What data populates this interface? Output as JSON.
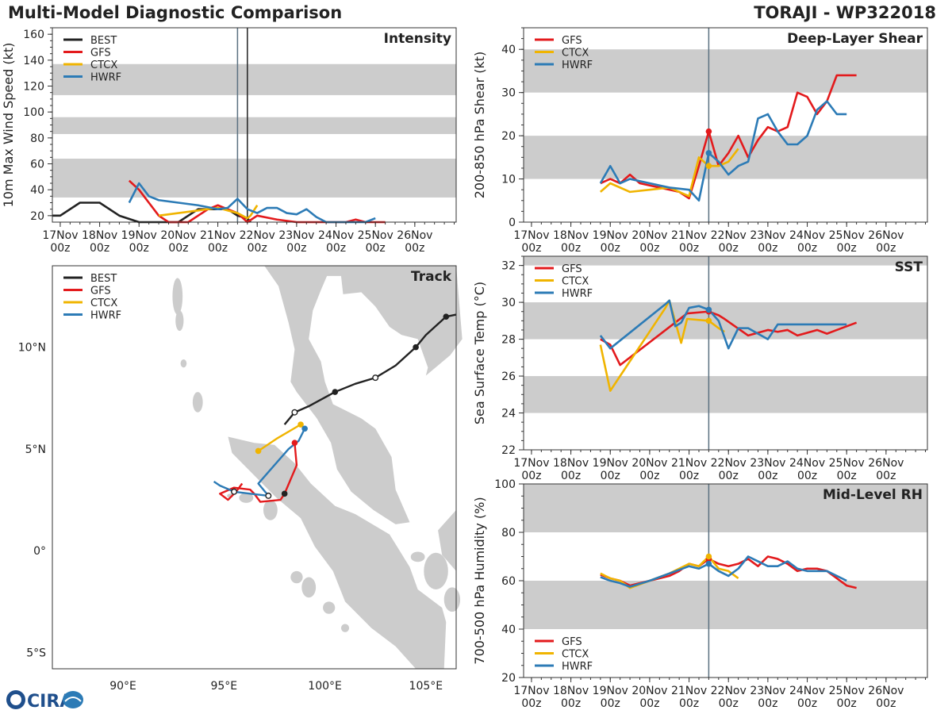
{
  "header": {
    "title": "Multi-Model Diagnostic Comparison",
    "storm": "TORAJI - WP322018"
  },
  "colors": {
    "BEST": "#222222",
    "GFS": "#e31a1c",
    "CTCX": "#f0b400",
    "HWRF": "#2c7bb6",
    "band": "#cccccc",
    "land": "#cccccc",
    "vline": "#5a7080"
  },
  "time_axis": {
    "ticks": [
      {
        "day": "17Nov",
        "hour": "00z"
      },
      {
        "day": "18Nov",
        "hour": "00z"
      },
      {
        "day": "19Nov",
        "hour": "00z"
      },
      {
        "day": "20Nov",
        "hour": "00z"
      },
      {
        "day": "21Nov",
        "hour": "00z"
      },
      {
        "day": "22Nov",
        "hour": "00z"
      },
      {
        "day": "23Nov",
        "hour": "00z"
      },
      {
        "day": "24Nov",
        "hour": "00z"
      },
      {
        "day": "25Nov",
        "hour": "00z"
      },
      {
        "day": "26Nov",
        "hour": "00z"
      }
    ],
    "xlim_days": [
      -0.2,
      10.05
    ],
    "init_day": 4.5
  },
  "logo": {
    "text": "CIRA"
  },
  "chart_data": [
    {
      "id": "intensity",
      "type": "line",
      "title": "Intensity",
      "ylabel": "10m Max Wind Speed (kt)",
      "ylim": [
        15,
        165
      ],
      "yticks": [
        20,
        40,
        60,
        80,
        100,
        120,
        140,
        160
      ],
      "bands": [
        [
          34,
          64
        ],
        [
          83,
          96
        ],
        [
          113,
          137
        ]
      ],
      "vlines": [
        4.5,
        4.75
      ],
      "legend": [
        "BEST",
        "GFS",
        "CTCX",
        "HWRF"
      ],
      "series": [
        {
          "name": "BEST",
          "x": [
            -0.2,
            0,
            0.5,
            1,
            1.5,
            2,
            2.5,
            3,
            3.25,
            3.5,
            4,
            4.25,
            4.5,
            4.75,
            4.83
          ],
          "y": [
            20,
            20,
            30,
            30,
            20,
            15,
            15,
            15,
            20,
            25,
            25,
            25,
            20,
            18,
            15
          ]
        },
        {
          "name": "GFS",
          "x": [
            1.75,
            2,
            2.25,
            2.5,
            2.75,
            3,
            3.25,
            3.5,
            3.75,
            4,
            4.25,
            4.5,
            4.75,
            5,
            5.5,
            6,
            6.5,
            7,
            7.25,
            7.5,
            7.75,
            8.25
          ],
          "y": [
            47,
            40,
            30,
            20,
            15,
            15,
            15,
            20,
            25,
            28,
            25,
            22,
            15,
            20,
            17,
            15,
            15,
            15,
            15,
            17,
            15,
            15
          ]
        },
        {
          "name": "CTCX",
          "x": [
            2.5,
            3,
            3.5,
            4,
            4.5,
            4.75,
            4.83,
            5
          ],
          "y": [
            20,
            22,
            24,
            26,
            22,
            18,
            20,
            28
          ]
        },
        {
          "name": "HWRF",
          "x": [
            1.75,
            2,
            2.25,
            2.5,
            3,
            3.5,
            4,
            4.25,
            4.5,
            4.75,
            5,
            5.25,
            5.5,
            5.75,
            6,
            6.25,
            6.5,
            6.75,
            7,
            7.25,
            7.5,
            7.75,
            8
          ],
          "y": [
            30,
            45,
            35,
            32,
            30,
            28,
            25,
            26,
            33,
            25,
            22,
            26,
            26,
            22,
            21,
            25,
            19,
            15,
            15,
            15,
            15,
            15,
            18
          ]
        }
      ]
    },
    {
      "id": "shear",
      "type": "line",
      "title": "Deep-Layer Shear",
      "ylabel": "200-850 hPa Shear (kt)",
      "ylim": [
        0,
        45
      ],
      "yticks": [
        0,
        10,
        20,
        30,
        40
      ],
      "bands": [
        [
          10,
          20
        ],
        [
          30,
          40
        ]
      ],
      "vlines": [
        4.5
      ],
      "legend": [
        "GFS",
        "CTCX",
        "HWRF"
      ],
      "series": [
        {
          "name": "GFS",
          "x": [
            1.75,
            2,
            2.25,
            2.5,
            2.75,
            3,
            3.25,
            3.5,
            3.75,
            4,
            4.25,
            4.5,
            4.75,
            5,
            5.25,
            5.5,
            5.75,
            6,
            6.25,
            6.5,
            6.75,
            7,
            7.25,
            7.5,
            7.75,
            8,
            8.25
          ],
          "y": [
            9,
            10,
            9,
            11,
            9,
            8.5,
            8,
            7.5,
            7,
            5.5,
            13,
            21,
            13,
            16,
            20,
            15,
            19,
            22,
            21,
            22,
            30,
            29,
            25,
            28,
            34,
            34,
            34
          ]
        },
        {
          "name": "CTCX",
          "x": [
            1.75,
            2,
            2.5,
            3,
            3.5,
            4,
            4.25,
            4.5,
            4.75,
            5,
            5.25
          ],
          "y": [
            7,
            9,
            7,
            7.5,
            8,
            6,
            15,
            13,
            13,
            14,
            17
          ]
        },
        {
          "name": "HWRF",
          "x": [
            1.75,
            2,
            2.25,
            2.5,
            3,
            3.5,
            4,
            4.25,
            4.5,
            4.75,
            5,
            5.25,
            5.5,
            5.75,
            6,
            6.25,
            6.5,
            6.75,
            7,
            7.25,
            7.5,
            7.75,
            8
          ],
          "y": [
            9,
            13,
            9,
            10,
            9,
            8,
            7.5,
            5,
            16,
            14,
            11,
            13,
            14,
            24,
            25,
            21,
            18,
            18,
            20,
            26,
            28,
            25,
            25
          ]
        }
      ]
    },
    {
      "id": "track",
      "type": "line",
      "title": "Track",
      "xlim": [
        86.5,
        106.5
      ],
      "ylim": [
        -5.8,
        14
      ],
      "xtick_labels": [
        {
          "v": 90,
          "t": "90°E"
        },
        {
          "v": 95,
          "t": "95°E"
        },
        {
          "v": 100,
          "t": "100°E"
        },
        {
          "v": 105,
          "t": "105°E"
        }
      ],
      "ytick_labels": [
        {
          "v": 10,
          "t": "10°N"
        },
        {
          "v": 5,
          "t": "5°N"
        },
        {
          "v": 0,
          "t": "0°"
        },
        {
          "v": -5,
          "t": "5°S"
        }
      ],
      "legend": [
        "BEST",
        "GFS",
        "CTCX",
        "HWRF"
      ],
      "series": [
        {
          "name": "BEST",
          "lon": [
            106.5,
            106,
            105,
            104.5,
            103.5,
            102.5,
            101.5,
            100.5,
            99.2,
            98.5,
            98.0
          ],
          "lat": [
            11.6,
            11.5,
            10.6,
            10.0,
            9.1,
            8.5,
            8.2,
            7.8,
            7.1,
            6.8,
            6.2
          ],
          "filled": [
            7,
            3,
            1
          ],
          "open": [
            9,
            5
          ]
        },
        {
          "name": "GFS",
          "lon": [
            98.5,
            98.6,
            98.3,
            98.0,
            97.8,
            96.8,
            96.5,
            96.3,
            95.5,
            94.8,
            95.2,
            95.6,
            95.9
          ],
          "lat": [
            5.3,
            4.2,
            3.5,
            2.8,
            2.5,
            2.4,
            2.8,
            3.0,
            3.1,
            2.8,
            2.5,
            2.9,
            3.3
          ],
          "filled": [
            0,
            3
          ],
          "open": []
        },
        {
          "name": "CTCX",
          "lon": [
            98.8,
            97.6,
            96.7
          ],
          "lat": [
            6.2,
            5.5,
            4.9
          ],
          "filled": [
            0,
            2
          ],
          "open": []
        },
        {
          "name": "HWRF",
          "lon": [
            99.0,
            98.7,
            98.2,
            96.7,
            97.2,
            96.3,
            95.5,
            94.8,
            94.5
          ],
          "lat": [
            6.0,
            5.4,
            5.0,
            3.3,
            2.7,
            2.8,
            2.9,
            3.2,
            3.4
          ],
          "filled": [
            0
          ],
          "open": [
            4,
            6
          ]
        }
      ]
    },
    {
      "id": "sst",
      "type": "line",
      "title": "SST",
      "ylabel": "Sea Surface Temp (°C)",
      "ylim": [
        22,
        32.5
      ],
      "yticks": [
        22,
        24,
        26,
        28,
        30,
        32
      ],
      "bands": [
        [
          24,
          26
        ],
        [
          28,
          30
        ],
        [
          32,
          32.5
        ]
      ],
      "vlines": [
        4.5
      ],
      "legend": [
        "GFS",
        "CTCX",
        "HWRF"
      ],
      "series": [
        {
          "name": "GFS",
          "x": [
            1.75,
            2,
            2.25,
            3.95,
            4.5,
            4.75,
            4.9,
            5.5,
            6.0,
            6.25,
            6.5,
            6.75,
            7.25,
            7.5,
            7.75,
            8.25
          ],
          "y": [
            28.0,
            27.7,
            26.6,
            29.4,
            29.5,
            29.3,
            29.1,
            28.2,
            28.5,
            28.4,
            28.5,
            28.2,
            28.5,
            28.3,
            28.5,
            28.9
          ]
        },
        {
          "name": "CTCX",
          "x": [
            1.75,
            2.0,
            3.4,
            3.5,
            3.8,
            3.95,
            4.5,
            4.75,
            4.9
          ],
          "y": [
            27.7,
            25.2,
            29.7,
            30.1,
            27.8,
            29.1,
            29.0,
            28.6,
            28.4
          ]
        },
        {
          "name": "HWRF",
          "x": [
            1.75,
            2.0,
            3.4,
            3.5,
            3.65,
            3.8,
            4.0,
            4.25,
            4.5,
            4.75,
            5.0,
            5.25,
            5.5,
            5.75,
            6.0,
            6.25,
            6.5,
            7.0,
            7.5,
            8.0
          ],
          "y": [
            28.2,
            27.5,
            29.9,
            30.1,
            28.7,
            28.9,
            29.7,
            29.8,
            29.6,
            29.0,
            27.5,
            28.6,
            28.6,
            28.3,
            28.0,
            28.8,
            28.8,
            28.8,
            28.8,
            28.8
          ]
        }
      ]
    },
    {
      "id": "rh",
      "type": "line",
      "title": "Mid-Level RH",
      "ylabel": "700-500 hPa Humidity (%)",
      "ylim": [
        20,
        100
      ],
      "yticks": [
        20,
        40,
        60,
        80,
        100
      ],
      "bands": [
        [
          40,
          60
        ],
        [
          80,
          100
        ]
      ],
      "vlines": [
        4.5
      ],
      "legend": [
        "GFS",
        "CTCX",
        "HWRF"
      ],
      "series": [
        {
          "name": "GFS",
          "x": [
            1.75,
            2,
            2.25,
            2.5,
            2.75,
            3,
            3.25,
            3.5,
            3.75,
            4,
            4.25,
            4.5,
            4.75,
            5,
            5.25,
            5.5,
            5.75,
            6,
            6.25,
            6.5,
            6.75,
            7,
            7.25,
            7.5,
            7.75,
            8,
            8.25
          ],
          "y": [
            62.5,
            61,
            60,
            58,
            59,
            60,
            61,
            62,
            64,
            67,
            66,
            69,
            67,
            66,
            67,
            69,
            66,
            70,
            69,
            67,
            64,
            65,
            65,
            64,
            61,
            58,
            57
          ]
        },
        {
          "name": "CTCX",
          "x": [
            1.75,
            2,
            2.25,
            2.5,
            3,
            3.5,
            4,
            4.25,
            4.5,
            4.75,
            5.0,
            5.25
          ],
          "y": [
            63,
            61,
            60,
            57,
            60,
            63,
            67,
            66,
            70,
            65,
            64,
            61
          ]
        },
        {
          "name": "HWRF",
          "x": [
            1.75,
            2,
            2.25,
            2.5,
            3,
            3.5,
            4,
            4.25,
            4.5,
            4.75,
            5.0,
            5.25,
            5.5,
            5.75,
            6.0,
            6.25,
            6.5,
            6.75,
            7.0,
            7.25,
            7.5,
            7.75,
            8.0
          ],
          "y": [
            61.5,
            60,
            59,
            57.5,
            60,
            63,
            66,
            65,
            67,
            64,
            62,
            65,
            70,
            68,
            66,
            66,
            68,
            65,
            64,
            64,
            64,
            62,
            60
          ]
        }
      ]
    }
  ]
}
